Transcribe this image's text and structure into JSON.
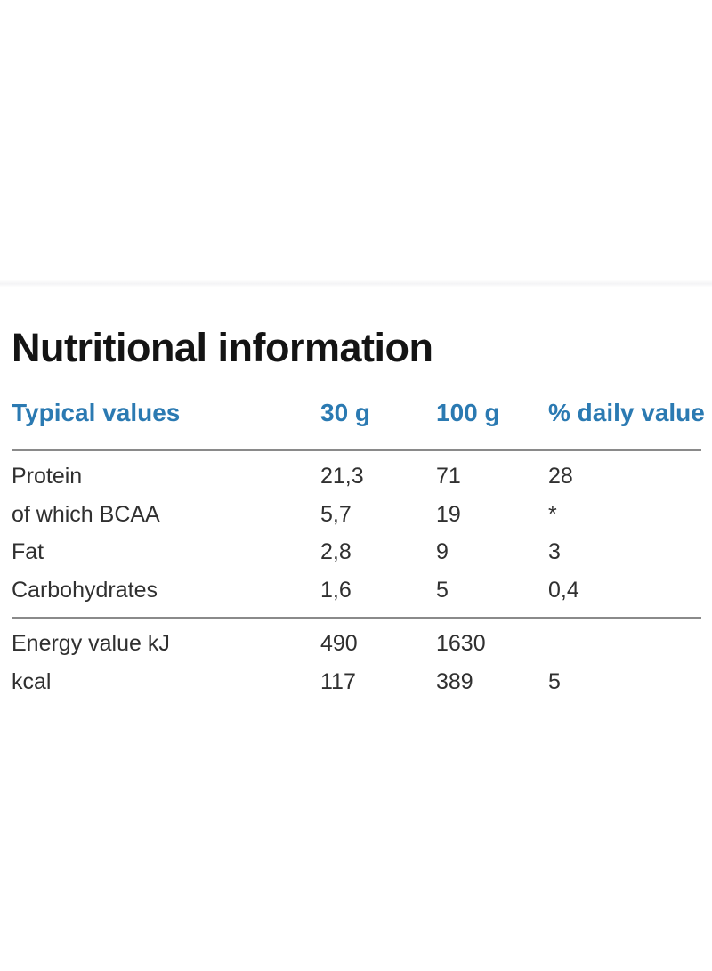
{
  "page": {
    "title": "Nutritional information"
  },
  "table": {
    "columns": [
      "Typical values",
      "30 g",
      "100 g",
      "% daily value"
    ],
    "sections": [
      {
        "rows": [
          {
            "label": "Protein",
            "per_30g": "21,3",
            "per_100g": "71",
            "daily_value": "28"
          },
          {
            "label": "of which BCAA",
            "per_30g": "5,7",
            "per_100g": "19",
            "daily_value": "*"
          },
          {
            "label": "Fat",
            "per_30g": "2,8",
            "per_100g": "9",
            "daily_value": "3"
          },
          {
            "label": "Carbohydrates",
            "per_30g": "1,6",
            "per_100g": "5",
            "daily_value": "0,4"
          }
        ]
      },
      {
        "rows": [
          {
            "label": "Energy value kJ",
            "per_30g": "490",
            "per_100g": "1630",
            "daily_value": ""
          },
          {
            "label": "kcal",
            "per_30g": "117",
            "per_100g": "389",
            "daily_value": "5"
          }
        ]
      }
    ]
  },
  "colors": {
    "accent_blue": "#2b7ab2",
    "title_black": "#141414",
    "body_text": "#303030",
    "rule_gray": "#8a8a8a"
  }
}
